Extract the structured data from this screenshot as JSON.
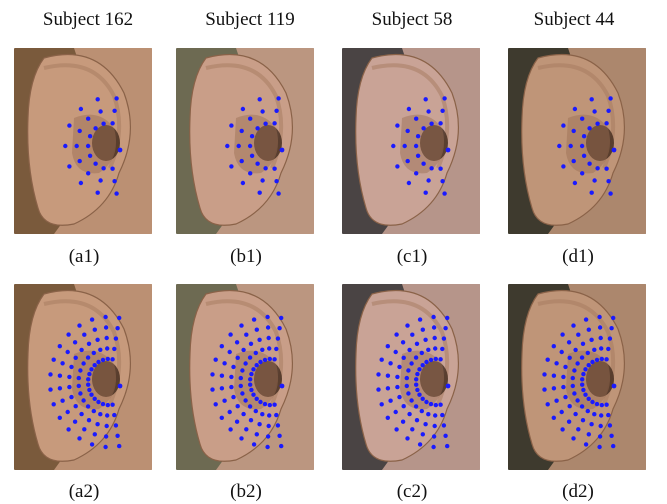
{
  "subjects": [
    "Subject 162",
    "Subject 119",
    "Subject 58",
    "Subject 44"
  ],
  "captions": {
    "row1": [
      "(a1)",
      "(b1)",
      "(c1)",
      "(d1)"
    ],
    "row2": [
      "(a2)",
      "(b2)",
      "(c2)",
      "(d2)"
    ]
  },
  "colors": {
    "landmark": "#1a1aff",
    "background": "#ffffff"
  },
  "tile_skin": [
    "#c79a7c",
    "#c99e88",
    "#c9a396",
    "#bf9578"
  ],
  "tile_bg": [
    "#7a5a3c",
    "#6d6a52",
    "#4a4444",
    "#3e3a2e"
  ]
}
